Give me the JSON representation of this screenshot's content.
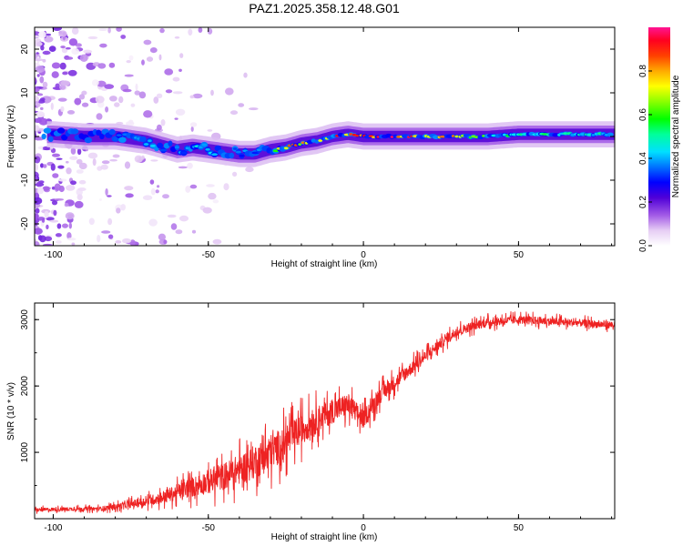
{
  "title": "PAZ1.2025.358.12.48.G01",
  "chart_data": [
    {
      "type": "heatmap",
      "xlabel": "Height of straight line (km)",
      "ylabel": "Frequency (Hz)",
      "xlim": [
        -106,
        81
      ],
      "ylim": [
        -25,
        25
      ],
      "xticks": [
        -100,
        -50,
        0,
        50
      ],
      "xtick_labels": [
        "-100",
        "-50",
        "0",
        "50"
      ],
      "yticks": [
        -20,
        -10,
        0,
        10,
        20
      ],
      "ytick_labels": [
        "-20",
        "-10",
        "0",
        "10",
        "20"
      ],
      "colorbar": {
        "label": "Normalized spectral amplitude",
        "range": [
          0,
          1
        ],
        "ticks": [
          0.0,
          0.2,
          0.4,
          0.6,
          0.8
        ],
        "tick_labels": [
          "0.0",
          "0.2",
          "0.4",
          "0.6",
          "0.8"
        ],
        "colormap": "rainbow (white-violet-blue-cyan-green-yellow-red-magenta)"
      },
      "ridge": {
        "description": "dominant spectral line frequency vs height",
        "x": [
          -100,
          -90,
          -80,
          -75,
          -70,
          -65,
          -60,
          -55,
          -50,
          -45,
          -40,
          -35,
          -30,
          -25,
          -20,
          -15,
          -10,
          -5,
          0,
          10,
          20,
          30,
          40,
          50,
          60,
          70,
          80
        ],
        "y": [
          0.5,
          0,
          0,
          -0.5,
          -1,
          -2,
          -3,
          -2.5,
          -3,
          -3.5,
          -4,
          -4,
          -3,
          -2.5,
          -1.5,
          -1,
          0,
          0.5,
          0,
          0,
          0,
          0,
          0,
          0.5,
          0.5,
          0.5,
          0.5
        ],
        "peak_amplitude": [
          0.2,
          0.3,
          0.35,
          0.4,
          0.45,
          0.45,
          0.4,
          0.45,
          0.45,
          0.45,
          0.4,
          0.35,
          0.5,
          0.9,
          0.8,
          0.9,
          0.9,
          0.9,
          0.9,
          0.95,
          0.9,
          0.8,
          0.6,
          0.55,
          0.55,
          0.5,
          0.5
        ]
      },
      "noise": {
        "description": "scattered low-amplitude speckle, dense below -85 km, fading out by -30 km",
        "x_extent": [
          -106,
          -30
        ],
        "amplitude": [
          0.02,
          0.2
        ]
      }
    },
    {
      "type": "line",
      "xlabel": "Height of straight line (km)",
      "ylabel": "SNR (10 * v/v)",
      "xlim": [
        -106,
        81
      ],
      "ylim": [
        0,
        3250
      ],
      "xticks": [
        -100,
        -50,
        0,
        50
      ],
      "xtick_labels": [
        "-100",
        "-50",
        "0",
        "50"
      ],
      "yticks": [
        1000,
        2000,
        3000
      ],
      "ytick_labels": [
        "1000",
        "2000",
        "3000"
      ],
      "series": [
        {
          "name": "SNR",
          "color": "#ee2222",
          "x": [
            -106,
            -100,
            -90,
            -85,
            -80,
            -75,
            -70,
            -65,
            -60,
            -55,
            -50,
            -45,
            -40,
            -35,
            -30,
            -25,
            -20,
            -15,
            -10,
            -5,
            0,
            5,
            10,
            15,
            20,
            25,
            30,
            35,
            40,
            45,
            50,
            55,
            60,
            65,
            70,
            75,
            81
          ],
          "mean": [
            130,
            140,
            150,
            150,
            180,
            220,
            260,
            320,
            400,
            480,
            560,
            640,
            740,
            860,
            1000,
            1150,
            1350,
            1500,
            1620,
            1720,
            1500,
            1850,
            2050,
            2250,
            2450,
            2650,
            2820,
            2900,
            2960,
            2980,
            3000,
            2990,
            2970,
            2960,
            2950,
            2930,
            2920
          ],
          "spread": [
            60,
            60,
            60,
            70,
            90,
            120,
            150,
            200,
            260,
            330,
            400,
            450,
            500,
            560,
            600,
            550,
            500,
            450,
            400,
            380,
            300,
            280,
            250,
            220,
            200,
            180,
            160,
            150,
            140,
            140,
            130,
            130,
            130,
            120,
            120,
            120,
            120
          ]
        }
      ]
    }
  ]
}
